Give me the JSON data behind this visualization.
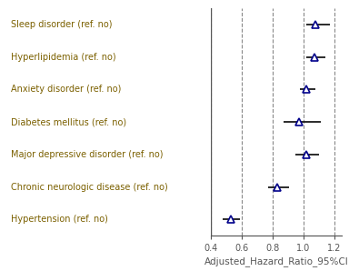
{
  "categories": [
    "Sleep disorder (ref. no)",
    "Hyperlipidemia (ref. no)",
    "Anxiety disorder (ref. no)",
    "Diabetes mellitus (ref. no)",
    "Major depressive disorder (ref. no)",
    "Chronic neurologic disease (ref. no)",
    "Hypertension (ref. no)"
  ],
  "estimates": [
    1.08,
    1.07,
    1.02,
    0.97,
    1.02,
    0.83,
    0.53
  ],
  "ci_low": [
    1.02,
    1.02,
    0.98,
    0.87,
    0.95,
    0.77,
    0.48
  ],
  "ci_high": [
    1.17,
    1.14,
    1.08,
    1.11,
    1.1,
    0.91,
    0.59
  ],
  "xlim": [
    0.4,
    1.25
  ],
  "xticks": [
    0.4,
    0.6,
    0.8,
    1.0,
    1.2
  ],
  "xtick_labels": [
    "0.4",
    "0.6",
    "0.8",
    "1.0",
    "1.2"
  ],
  "xlabel": "Adjusted_Hazard_Ratio_95%CI",
  "vlines": [
    0.4,
    0.6,
    0.8,
    1.0,
    1.2
  ],
  "label_color": "#7B6000",
  "point_color": "#00008B",
  "line_color": "#1A1A1A",
  "bg_color": "#FFFFFF",
  "label_fontsize": 7.0,
  "xlabel_fontsize": 7.5,
  "tick_fontsize": 7.0
}
